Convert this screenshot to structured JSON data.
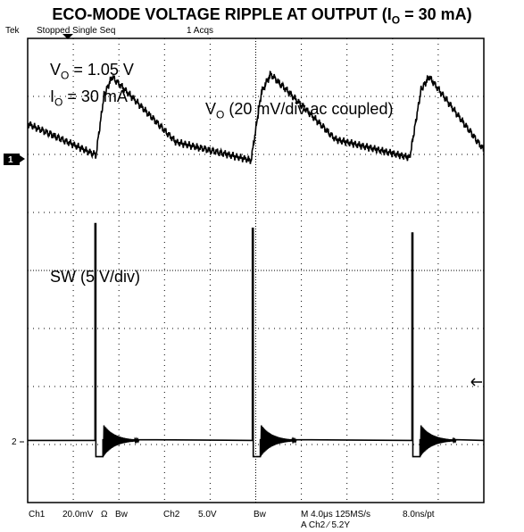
{
  "title": {
    "main": "ECO-MODE VOLTAGE RIPPLE AT OUTPUT (I",
    "sub": "O",
    "tail": " = 30 mA)"
  },
  "header": {
    "brand": "Tek",
    "status": "Stopped Single Seq",
    "acqs": "1 Acqs"
  },
  "annotations": {
    "vo_v": "V",
    "vo_sub": "O",
    "vo_val": " = 1.05 V",
    "io_i": "I",
    "io_sub": "O",
    "io_val": " = 30 mA",
    "ch1_a": "V",
    "ch1_sub": "O",
    "ch1_b": " (20 mV/div ac coupled)",
    "ch2": "SW (5 V/div)"
  },
  "markers": {
    "ch1": "1",
    "ch2": "2"
  },
  "footer": {
    "ch1": "Ch1",
    "ch1_scale": "20.0mV",
    "ch1_sym": "Ω",
    "ch1_bw": "Bw",
    "ch2": "Ch2",
    "ch2_scale": "5.0V",
    "ch2_bw": "Bw",
    "timebase": "M 4.0μs 125MS/s",
    "rate": "8.0ns/pt",
    "trigger": "A  Ch2  ∕  5.2Y"
  },
  "chart_data": {
    "type": "line",
    "title": "ECO-MODE VOLTAGE RIPPLE AT OUTPUT (IO = 30 mA)",
    "x_unit": "μs",
    "xlim": [
      0,
      40
    ],
    "grid": true,
    "series": [
      {
        "name": "VO (20 mV/div ac coupled)",
        "unit": "mV",
        "x": [
          0,
          6,
          6.2,
          6.7,
          7.4,
          13,
          19.6,
          20.0,
          20.5,
          21.3,
          27,
          33.5,
          34.0,
          34.5,
          35.2,
          40
        ],
        "y": [
          22,
          10,
          17,
          33,
          40,
          15,
          8,
          20,
          34,
          41,
          16,
          9,
          22,
          35,
          40,
          12
        ]
      },
      {
        "name": "SW (5 V/div)",
        "unit": "V",
        "x": [
          0,
          5.9,
          5.95,
          6.05,
          6.3,
          19.7,
          19.75,
          19.85,
          20.1,
          33.7,
          33.75,
          33.85,
          34.1,
          40
        ],
        "y": [
          0.15,
          0.15,
          23.5,
          -0.5,
          0.15,
          0.15,
          23,
          -0.5,
          0.15,
          0.15,
          22.5,
          -0.5,
          0.15,
          0.15
        ]
      }
    ]
  }
}
